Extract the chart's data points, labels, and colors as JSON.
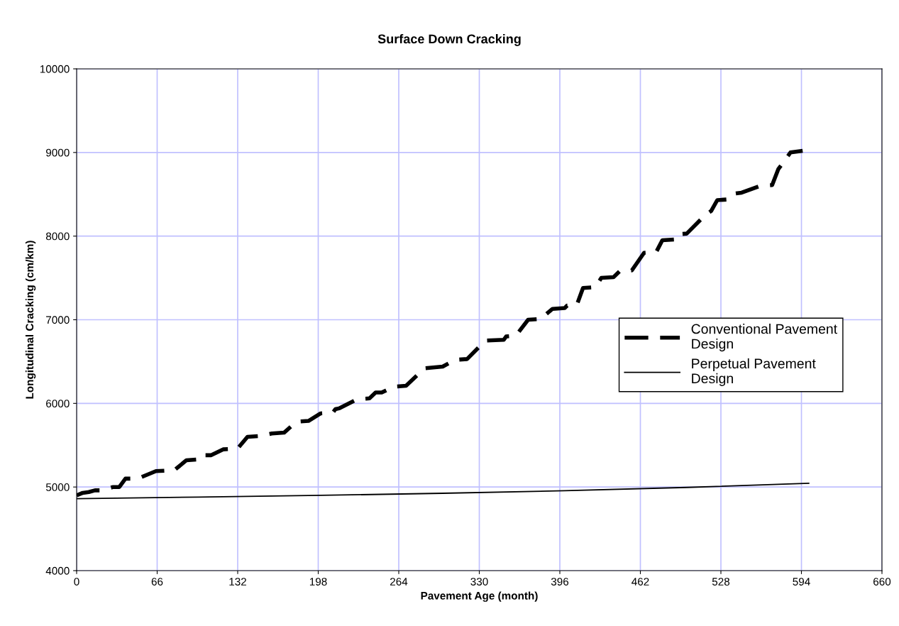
{
  "chart_data": {
    "type": "line",
    "title": "Surface Down Cracking",
    "xlabel": "Pavement Age (month)",
    "ylabel": "Longitudinal Cracking (cm/km)",
    "xlim": [
      0,
      660
    ],
    "xticks": [
      0,
      66,
      132,
      198,
      264,
      330,
      396,
      462,
      528,
      594,
      660
    ],
    "ylim": [
      4000,
      10000
    ],
    "yticks": [
      4000,
      5000,
      6000,
      7000,
      8000,
      9000,
      10000
    ],
    "grid": true,
    "legend": "right",
    "marker": "none",
    "series": [
      {
        "name": "Conventional Pavement Design",
        "color": "#000000",
        "line_style": "dashed",
        "x": [
          0,
          5,
          10,
          15,
          20,
          30,
          35,
          40,
          50,
          65,
          80,
          90,
          100,
          102,
          110,
          120,
          132,
          140,
          150,
          160,
          170,
          180,
          190,
          200,
          210,
          212,
          215,
          230,
          240,
          245,
          250,
          260,
          270,
          285,
          300,
          310,
          320,
          335,
          350,
          352,
          360,
          370,
          380,
          390,
          400,
          402,
          410,
          415,
          425,
          430,
          440,
          445,
          455,
          465,
          475,
          480,
          490,
          492,
          500,
          515,
          520,
          525,
          535,
          540,
          545,
          560,
          570,
          575,
          585,
          595
        ],
        "values": [
          4900,
          4930,
          4940,
          4960,
          4960,
          5000,
          5000,
          5100,
          5100,
          5190,
          5200,
          5320,
          5330,
          5380,
          5380,
          5450,
          5460,
          5600,
          5610,
          5640,
          5650,
          5780,
          5790,
          5880,
          5890,
          5930,
          5940,
          6050,
          6060,
          6130,
          6130,
          6200,
          6210,
          6420,
          6440,
          6520,
          6530,
          6750,
          6760,
          6800,
          6810,
          7000,
          7010,
          7130,
          7140,
          7170,
          7180,
          7380,
          7390,
          7500,
          7510,
          7580,
          7590,
          7800,
          7810,
          7950,
          7960,
          8020,
          8030,
          8250,
          8300,
          8430,
          8440,
          8510,
          8520,
          8600,
          8610,
          8800,
          9000,
          9020
        ]
      },
      {
        "name": "Perpetual Pavement Design",
        "color": "#000000",
        "line_style": "solid",
        "x": [
          0,
          100,
          200,
          300,
          400,
          500,
          600
        ],
        "values": [
          4860,
          4880,
          4900,
          4925,
          4955,
          4995,
          5045
        ]
      }
    ]
  }
}
